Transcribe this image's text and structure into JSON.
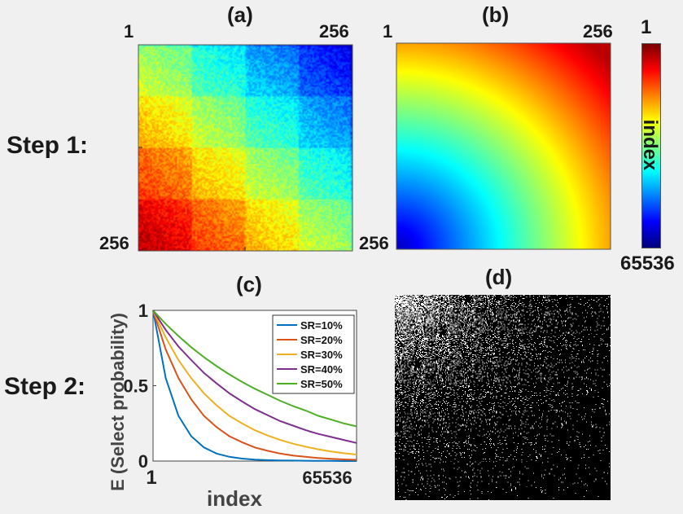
{
  "steps": {
    "step1": "Step 1:",
    "step2": "Step 2:"
  },
  "panels": {
    "a": "(a)",
    "b": "(b)",
    "c": "(c)",
    "d": "(d)"
  },
  "matrix_ticks": {
    "start": "1",
    "end": "256"
  },
  "colorbar": {
    "top": "1",
    "bottom": "65536",
    "label": "index"
  },
  "chart_data": [
    {
      "panel": "(a)",
      "type": "heatmap",
      "rows": 256,
      "cols": 256,
      "range": [
        1,
        65536
      ],
      "colormap": "jet-reversed",
      "x_ticks": [
        "1",
        "256"
      ],
      "y_ticks": [
        "1",
        "256"
      ]
    },
    {
      "panel": "(b)",
      "type": "heatmap",
      "rows": 256,
      "cols": 256,
      "range": [
        1,
        65536
      ],
      "colormap": "jet-reversed",
      "x_ticks": [
        "1",
        "256"
      ],
      "y_ticks": [
        "1",
        "256"
      ]
    },
    {
      "panel": "(c)",
      "type": "line",
      "xlabel": "index",
      "ylabel": "E (Select probability)",
      "xlim": [
        1,
        65536
      ],
      "ylim": [
        0,
        1
      ],
      "x_tick_labels": [
        "1",
        "65536"
      ],
      "y_tick_labels": [
        "0",
        "0.5",
        "1"
      ],
      "legend_position": "top-right",
      "x": [
        1,
        4096,
        8192,
        12288,
        16384,
        20480,
        24576,
        28672,
        32768,
        36864,
        40960,
        45056,
        49152,
        53248,
        57344,
        61440,
        65536
      ],
      "series": [
        {
          "name": "SR=10%",
          "color": "#0072bd",
          "values": [
            1.0,
            0.55,
            0.3,
            0.165,
            0.09,
            0.05,
            0.028,
            0.016,
            0.01,
            0.006,
            0.004,
            0.003,
            0.002,
            0.001,
            0.001,
            0.0,
            0.0
          ]
        },
        {
          "name": "SR=20%",
          "color": "#d95319",
          "values": [
            1.0,
            0.74,
            0.55,
            0.41,
            0.3,
            0.225,
            0.165,
            0.125,
            0.09,
            0.068,
            0.05,
            0.037,
            0.028,
            0.02,
            0.015,
            0.011,
            0.008
          ]
        },
        {
          "name": "SR=30%",
          "color": "#edb120",
          "values": [
            1.0,
            0.82,
            0.67,
            0.55,
            0.45,
            0.37,
            0.3,
            0.25,
            0.205,
            0.17,
            0.14,
            0.115,
            0.095,
            0.078,
            0.064,
            0.052,
            0.043
          ]
        },
        {
          "name": "SR=40%",
          "color": "#7e2f8e",
          "values": [
            1.0,
            0.87,
            0.76,
            0.67,
            0.585,
            0.515,
            0.45,
            0.395,
            0.345,
            0.305,
            0.265,
            0.235,
            0.205,
            0.18,
            0.16,
            0.14,
            0.12
          ]
        },
        {
          "name": "SR=50%",
          "color": "#4daf26",
          "values": [
            1.0,
            0.91,
            0.83,
            0.755,
            0.69,
            0.63,
            0.575,
            0.525,
            0.48,
            0.44,
            0.4,
            0.365,
            0.335,
            0.3,
            0.275,
            0.25,
            0.23
          ]
        }
      ]
    },
    {
      "panel": "(d)",
      "type": "heatmap",
      "rows": 256,
      "cols": 256,
      "values_description_colors": {
        "selected": "#ffffff",
        "unselected": "#000000"
      }
    }
  ]
}
